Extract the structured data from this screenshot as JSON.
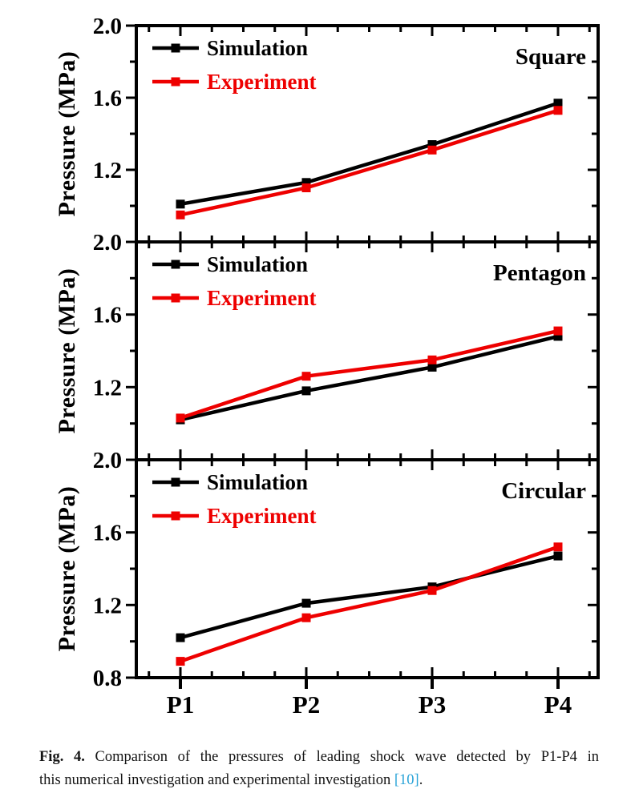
{
  "figure_caption": {
    "label": "Fig. 4.",
    "line1": "Comparison of the pressures of leading shock wave detected by P1-P4 in",
    "line2": "this numerical investigation and experimental investigation ",
    "citation": "[10]",
    "suffix": "."
  },
  "colors": {
    "simulation": "#000000",
    "experiment": "#ee0000",
    "citation_link": "#2ba4d8",
    "axis": "#000000"
  },
  "axis": {
    "ylabel": "Pressure (MPa)",
    "categories": [
      "P1",
      "P2",
      "P3",
      "P4"
    ],
    "ytick_labels": [
      "2.0",
      "1.6",
      "1.2",
      "0.8"
    ]
  },
  "chart_data": [
    {
      "type": "line",
      "title": "Square",
      "categories": [
        "P1",
        "P2",
        "P3",
        "P4"
      ],
      "series": [
        {
          "name": "Simulation",
          "color": "#000000",
          "values": [
            1.01,
            1.13,
            1.34,
            1.57
          ]
        },
        {
          "name": "Experiment",
          "color": "#ee0000",
          "values": [
            0.95,
            1.1,
            1.31,
            1.53
          ]
        }
      ],
      "xlabel": "",
      "ylabel": "Pressure (MPa)",
      "ylim": [
        0.8,
        2.0
      ],
      "yticks_major": [
        2.0,
        1.6,
        1.2,
        0.8
      ],
      "yticks_minor": [
        1.8,
        1.4,
        1.0
      ],
      "legend_position": "top-left",
      "grid": false
    },
    {
      "type": "line",
      "title": "Pentagon",
      "categories": [
        "P1",
        "P2",
        "P3",
        "P4"
      ],
      "series": [
        {
          "name": "Simulation",
          "color": "#000000",
          "values": [
            1.02,
            1.18,
            1.31,
            1.48
          ]
        },
        {
          "name": "Experiment",
          "color": "#ee0000",
          "values": [
            1.03,
            1.26,
            1.35,
            1.51
          ]
        }
      ],
      "xlabel": "",
      "ylabel": "Pressure (MPa)",
      "ylim": [
        0.8,
        2.0
      ],
      "yticks_major": [
        2.0,
        1.6,
        1.2,
        0.8
      ],
      "yticks_minor": [
        1.8,
        1.4,
        1.0
      ],
      "legend_position": "top-left",
      "grid": false
    },
    {
      "type": "line",
      "title": "Circular",
      "categories": [
        "P1",
        "P2",
        "P3",
        "P4"
      ],
      "series": [
        {
          "name": "Simulation",
          "color": "#000000",
          "values": [
            1.02,
            1.21,
            1.3,
            1.47
          ]
        },
        {
          "name": "Experiment",
          "color": "#ee0000",
          "values": [
            0.89,
            1.13,
            1.28,
            1.52
          ]
        }
      ],
      "xlabel": "",
      "ylabel": "Pressure (MPa)",
      "ylim": [
        0.8,
        2.0
      ],
      "yticks_major": [
        2.0,
        1.6,
        1.2,
        0.8
      ],
      "yticks_minor": [
        1.8,
        1.4,
        1.0
      ],
      "legend_position": "top-left",
      "grid": false
    }
  ]
}
